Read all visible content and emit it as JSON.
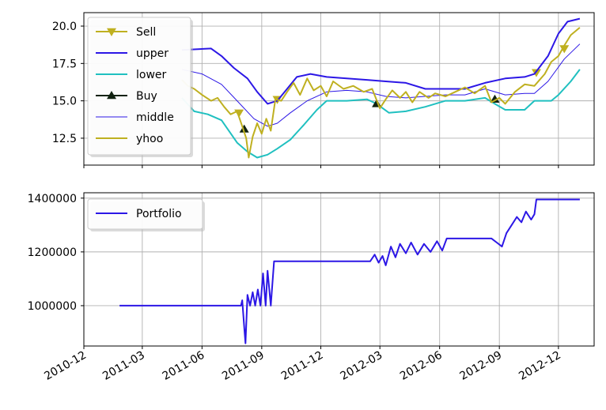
{
  "chart_data": [
    {
      "type": "line",
      "title": "",
      "xlabel": "",
      "ylabel": "",
      "ylim": [
        10.7,
        20.9
      ],
      "yticks": [
        12.5,
        15.0,
        17.5,
        20.0
      ],
      "yticklabels": [
        "12.5",
        "15.0",
        "17.5",
        "20.0"
      ],
      "grid": true,
      "legend_placement": "upper-left",
      "series": [
        {
          "name": "Sell",
          "color": "#bfb020",
          "marker": "triangle-down",
          "style": "marker-only",
          "points": [
            [
              "2011-07-28",
              14.2
            ],
            [
              "2011-09-25",
              15.1
            ],
            [
              "2012-10-28",
              16.9
            ],
            [
              "2012-12-10",
              18.5
            ]
          ]
        },
        {
          "name": "upper",
          "color": "#2c17e6",
          "points": [
            [
              "2011-05-01",
              18.4
            ],
            [
              "2011-06-15",
              18.5
            ],
            [
              "2011-07-01",
              18.0
            ],
            [
              "2011-07-20",
              17.2
            ],
            [
              "2011-08-10",
              16.5
            ],
            [
              "2011-08-25",
              15.6
            ],
            [
              "2011-09-10",
              14.8
            ],
            [
              "2011-09-25",
              15.0
            ],
            [
              "2011-10-10",
              15.8
            ],
            [
              "2011-10-25",
              16.6
            ],
            [
              "2011-11-15",
              16.8
            ],
            [
              "2011-12-10",
              16.6
            ],
            [
              "2012-01-10",
              16.5
            ],
            [
              "2012-02-10",
              16.4
            ],
            [
              "2012-03-10",
              16.3
            ],
            [
              "2012-04-10",
              16.2
            ],
            [
              "2012-05-10",
              15.8
            ],
            [
              "2012-06-10",
              15.8
            ],
            [
              "2012-07-10",
              15.8
            ],
            [
              "2012-08-10",
              16.2
            ],
            [
              "2012-09-10",
              16.5
            ],
            [
              "2012-10-10",
              16.6
            ],
            [
              "2012-10-25",
              16.8
            ],
            [
              "2012-11-15",
              18.0
            ],
            [
              "2012-12-01",
              19.5
            ],
            [
              "2012-12-15",
              20.3
            ],
            [
              "2013-01-03",
              20.5
            ]
          ]
        },
        {
          "name": "lower",
          "color": "#20c0c0",
          "points": [
            [
              "2011-05-01",
              15.2
            ],
            [
              "2011-05-20",
              14.3
            ],
            [
              "2011-06-10",
              14.1
            ],
            [
              "2011-07-01",
              13.7
            ],
            [
              "2011-07-25",
              12.2
            ],
            [
              "2011-08-10",
              11.6
            ],
            [
              "2011-08-25",
              11.2
            ],
            [
              "2011-09-10",
              11.4
            ],
            [
              "2011-09-25",
              11.8
            ],
            [
              "2011-10-15",
              12.4
            ],
            [
              "2011-11-05",
              13.4
            ],
            [
              "2011-11-25",
              14.4
            ],
            [
              "2011-12-10",
              15.0
            ],
            [
              "2012-01-10",
              15.0
            ],
            [
              "2012-02-10",
              15.1
            ],
            [
              "2012-02-25",
              14.8
            ],
            [
              "2012-03-15",
              14.2
            ],
            [
              "2012-04-10",
              14.3
            ],
            [
              "2012-05-10",
              14.6
            ],
            [
              "2012-06-10",
              15.0
            ],
            [
              "2012-07-10",
              15.0
            ],
            [
              "2012-08-10",
              15.2
            ],
            [
              "2012-08-25",
              14.8
            ],
            [
              "2012-09-10",
              14.4
            ],
            [
              "2012-10-10",
              14.4
            ],
            [
              "2012-10-25",
              15.0
            ],
            [
              "2012-11-20",
              15.0
            ],
            [
              "2012-12-01",
              15.4
            ],
            [
              "2012-12-20",
              16.3
            ],
            [
              "2013-01-03",
              17.1
            ]
          ]
        },
        {
          "name": "Buy",
          "color": "#112211",
          "marker": "triangle-up",
          "style": "marker-only",
          "points": [
            [
              "2011-08-05",
              13.1
            ],
            [
              "2012-02-25",
              14.8
            ],
            [
              "2012-08-25",
              15.1
            ]
          ]
        },
        {
          "name": "middle",
          "color": "#2c17e6",
          "thin": true,
          "points": [
            [
              "2011-05-01",
              17.1
            ],
            [
              "2011-06-01",
              16.8
            ],
            [
              "2011-07-01",
              16.1
            ],
            [
              "2011-07-25",
              15.0
            ],
            [
              "2011-08-20",
              13.8
            ],
            [
              "2011-09-10",
              13.3
            ],
            [
              "2011-09-25",
              13.5
            ],
            [
              "2011-10-15",
              14.2
            ],
            [
              "2011-11-10",
              15.0
            ],
            [
              "2011-12-10",
              15.6
            ],
            [
              "2012-01-10",
              15.7
            ],
            [
              "2012-02-10",
              15.6
            ],
            [
              "2012-03-10",
              15.3
            ],
            [
              "2012-04-10",
              15.2
            ],
            [
              "2012-05-10",
              15.3
            ],
            [
              "2012-06-10",
              15.4
            ],
            [
              "2012-07-10",
              15.4
            ],
            [
              "2012-08-10",
              15.8
            ],
            [
              "2012-09-10",
              15.4
            ],
            [
              "2012-10-10",
              15.5
            ],
            [
              "2012-10-25",
              15.5
            ],
            [
              "2012-11-15",
              16.3
            ],
            [
              "2012-12-10",
              17.8
            ],
            [
              "2013-01-03",
              18.8
            ]
          ]
        },
        {
          "name": "yhoo",
          "color": "#bfb020",
          "points": [
            [
              "2011-05-01",
              16.4
            ],
            [
              "2011-05-10",
              16.0
            ],
            [
              "2011-05-20",
              15.8
            ],
            [
              "2011-06-01",
              15.4
            ],
            [
              "2011-06-15",
              15.0
            ],
            [
              "2011-06-25",
              15.2
            ],
            [
              "2011-07-05",
              14.6
            ],
            [
              "2011-07-15",
              14.1
            ],
            [
              "2011-07-25",
              14.3
            ],
            [
              "2011-08-02",
              13.3
            ],
            [
              "2011-08-08",
              12.5
            ],
            [
              "2011-08-12",
              11.2
            ],
            [
              "2011-08-18",
              12.6
            ],
            [
              "2011-08-25",
              13.5
            ],
            [
              "2011-09-01",
              12.8
            ],
            [
              "2011-09-08",
              13.8
            ],
            [
              "2011-09-15",
              13.0
            ],
            [
              "2011-09-22",
              15.1
            ],
            [
              "2011-10-01",
              15.0
            ],
            [
              "2011-10-10",
              15.6
            ],
            [
              "2011-10-20",
              16.2
            ],
            [
              "2011-10-30",
              15.4
            ],
            [
              "2011-11-10",
              16.5
            ],
            [
              "2011-11-20",
              15.7
            ],
            [
              "2011-12-01",
              16.0
            ],
            [
              "2011-12-10",
              15.3
            ],
            [
              "2011-12-20",
              16.3
            ],
            [
              "2012-01-05",
              15.8
            ],
            [
              "2012-01-20",
              16.0
            ],
            [
              "2012-02-05",
              15.6
            ],
            [
              "2012-02-18",
              15.8
            ],
            [
              "2012-03-01",
              14.5
            ],
            [
              "2012-03-10",
              15.1
            ],
            [
              "2012-03-20",
              15.7
            ],
            [
              "2012-04-01",
              15.2
            ],
            [
              "2012-04-10",
              15.6
            ],
            [
              "2012-04-20",
              14.9
            ],
            [
              "2012-05-01",
              15.6
            ],
            [
              "2012-05-15",
              15.2
            ],
            [
              "2012-05-25",
              15.5
            ],
            [
              "2012-06-10",
              15.3
            ],
            [
              "2012-06-25",
              15.6
            ],
            [
              "2012-07-10",
              15.9
            ],
            [
              "2012-07-25",
              15.5
            ],
            [
              "2012-08-10",
              16.0
            ],
            [
              "2012-08-20",
              14.9
            ],
            [
              "2012-09-01",
              15.2
            ],
            [
              "2012-09-10",
              14.8
            ],
            [
              "2012-09-25",
              15.6
            ],
            [
              "2012-10-10",
              16.1
            ],
            [
              "2012-10-25",
              16.0
            ],
            [
              "2012-11-10",
              16.8
            ],
            [
              "2012-11-20",
              17.6
            ],
            [
              "2012-12-01",
              18.0
            ],
            [
              "2012-12-10",
              18.7
            ],
            [
              "2012-12-20",
              19.4
            ],
            [
              "2013-01-03",
              19.9
            ]
          ]
        }
      ]
    },
    {
      "type": "line",
      "title": "",
      "xlabel": "",
      "ylabel": "",
      "ylim": [
        850000,
        1420000
      ],
      "yticks": [
        1000000,
        1200000,
        1400000
      ],
      "yticklabels": [
        "1000000",
        "1200000",
        "1400000"
      ],
      "grid": true,
      "legend_placement": "upper-left",
      "series": [
        {
          "name": "Portfolio",
          "color": "#2c17e6",
          "points": [
            [
              "2011-01-25",
              1000000
            ],
            [
              "2011-07-31",
              1000000
            ],
            [
              "2011-08-02",
              1020000
            ],
            [
              "2011-08-05",
              920000
            ],
            [
              "2011-08-07",
              860000
            ],
            [
              "2011-08-10",
              1040000
            ],
            [
              "2011-08-14",
              1000000
            ],
            [
              "2011-08-18",
              1050000
            ],
            [
              "2011-08-22",
              1000000
            ],
            [
              "2011-08-26",
              1060000
            ],
            [
              "2011-08-30",
              1000000
            ],
            [
              "2011-09-03",
              1120000
            ],
            [
              "2011-09-07",
              1000000
            ],
            [
              "2011-09-10",
              1130000
            ],
            [
              "2011-09-15",
              1000000
            ],
            [
              "2011-09-20",
              1165000
            ],
            [
              "2012-02-15",
              1165000
            ],
            [
              "2012-02-22",
              1190000
            ],
            [
              "2012-02-28",
              1160000
            ],
            [
              "2012-03-05",
              1185000
            ],
            [
              "2012-03-10",
              1150000
            ],
            [
              "2012-03-18",
              1220000
            ],
            [
              "2012-03-25",
              1180000
            ],
            [
              "2012-04-01",
              1230000
            ],
            [
              "2012-04-10",
              1195000
            ],
            [
              "2012-04-18",
              1235000
            ],
            [
              "2012-04-28",
              1190000
            ],
            [
              "2012-05-08",
              1230000
            ],
            [
              "2012-05-18",
              1200000
            ],
            [
              "2012-05-28",
              1240000
            ],
            [
              "2012-06-05",
              1205000
            ],
            [
              "2012-06-12",
              1250000
            ],
            [
              "2012-08-20",
              1250000
            ],
            [
              "2012-08-28",
              1235000
            ],
            [
              "2012-09-05",
              1220000
            ],
            [
              "2012-09-12",
              1270000
            ],
            [
              "2012-09-20",
              1300000
            ],
            [
              "2012-09-28",
              1330000
            ],
            [
              "2012-10-05",
              1310000
            ],
            [
              "2012-10-12",
              1350000
            ],
            [
              "2012-10-20",
              1320000
            ],
            [
              "2012-10-25",
              1340000
            ],
            [
              "2012-10-28",
              1395000
            ],
            [
              "2013-01-03",
              1395000
            ]
          ]
        }
      ]
    }
  ],
  "x_axis": {
    "range": [
      "2010-12-01",
      "2013-01-25"
    ],
    "ticks": [
      "2010-12-01",
      "2011-03-01",
      "2011-06-01",
      "2011-09-01",
      "2011-12-01",
      "2012-03-01",
      "2012-06-01",
      "2012-09-01",
      "2012-12-01"
    ],
    "ticklabels": [
      "2010-12",
      "2011-03",
      "2011-06",
      "2011-09",
      "2011-12",
      "2012-03",
      "2012-06",
      "2012-09",
      "2012-12"
    ]
  }
}
